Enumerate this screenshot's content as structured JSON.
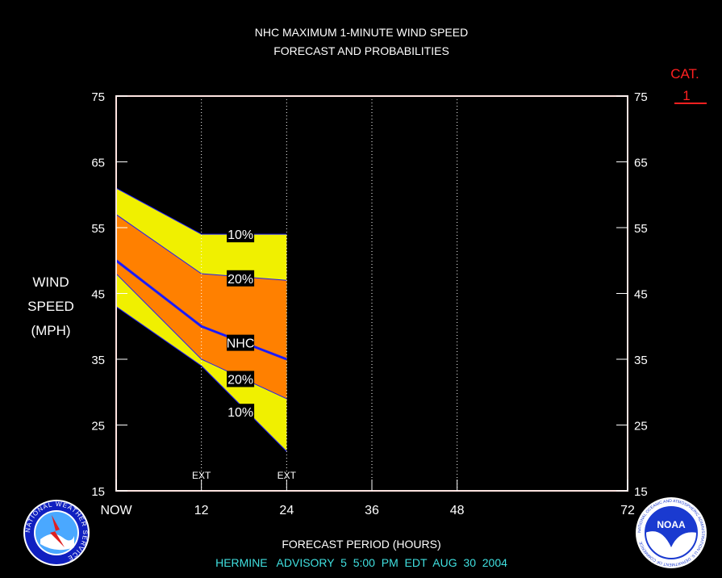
{
  "chart_data": {
    "type": "area",
    "title": "NHC MAXIMUM 1-MINUTE WIND SPEED",
    "subtitle": "FORECAST AND PROBABILITIES",
    "ylabel_lines": [
      "WIND",
      "SPEED",
      "(MPH)"
    ],
    "xlabel": "FORECAST PERIOD (HOURS)",
    "ylim": [
      15,
      75
    ],
    "yticks": [
      15,
      25,
      35,
      45,
      55,
      65,
      75
    ],
    "xlim": [
      0,
      72
    ],
    "xticks": [
      {
        "x": 0,
        "label": "NOW"
      },
      {
        "x": 12,
        "label": "12"
      },
      {
        "x": 24,
        "label": "24"
      },
      {
        "x": 36,
        "label": "36"
      },
      {
        "x": 48,
        "label": "48"
      },
      {
        "x": 72,
        "label": "72"
      }
    ],
    "ext_markers": [
      {
        "x": 12,
        "label": "EXT"
      },
      {
        "x": 24,
        "label": "EXT"
      }
    ],
    "x": [
      0,
      12,
      24
    ],
    "series": [
      {
        "name": "10%",
        "kind": "upper",
        "values": [
          61,
          54,
          54
        ]
      },
      {
        "name": "20%",
        "kind": "upper",
        "values": [
          57,
          48,
          47
        ]
      },
      {
        "name": "NHC",
        "kind": "forecast",
        "values": [
          50,
          40,
          35
        ]
      },
      {
        "name": "20%",
        "kind": "lower",
        "values": [
          48,
          35,
          29
        ]
      },
      {
        "name": "10%",
        "kind": "lower",
        "values": [
          43,
          34,
          21
        ]
      }
    ],
    "band_labels": [
      {
        "text": "10%",
        "x": 17.5,
        "y": 54
      },
      {
        "text": "20%",
        "x": 17.5,
        "y": 47.3
      },
      {
        "text": "NHC",
        "x": 17.5,
        "y": 37.5
      },
      {
        "text": "20%",
        "x": 17.5,
        "y": 32
      },
      {
        "text": "10%",
        "x": 17.5,
        "y": 27
      }
    ],
    "category_label": "CAT.",
    "category_value": "1",
    "footer": "HERMINE   ADVISORY  5  5:00  PM  EDT  AUG  30  2004",
    "logos": {
      "left": "NATIONAL WEATHER SERVICE",
      "right": "NATIONAL OCEANIC AND ATMOSPHERIC ADMINISTRATION U.S. DEPARTMENT OF COMMERCE",
      "right_badge": "NOAA"
    },
    "colors": {
      "background": "#000000",
      "frame": "#ffe4e1",
      "outer_band": "#f0f000",
      "inner_band": "#ff8000",
      "forecast_line": "#1a1aff",
      "category": "#ff2020",
      "footer": "#40e0e0"
    }
  }
}
